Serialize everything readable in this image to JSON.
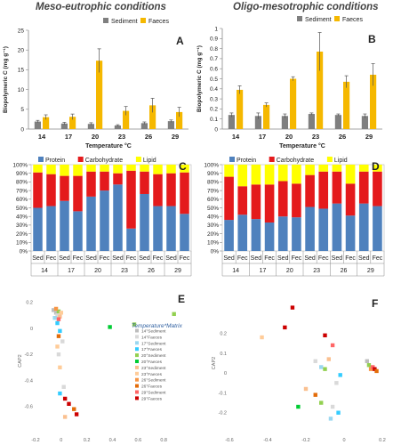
{
  "titles": {
    "left": "Meso-eutrophic conditions",
    "right": "Oligo-mesotrophic conditions"
  },
  "chart_data": [
    {
      "panel": "A",
      "type": "bar",
      "categories": [
        "14",
        "17",
        "20",
        "23",
        "26",
        "29"
      ],
      "series": [
        {
          "name": "Sediment",
          "values": [
            1.9,
            1.4,
            1.3,
            0.9,
            1.5,
            2.0
          ],
          "err": [
            0.3,
            0.3,
            0.3,
            0.2,
            0.3,
            0.3
          ]
        },
        {
          "name": "Faeces",
          "values": [
            3.0,
            3.1,
            17.3,
            4.6,
            6.0,
            4.3
          ],
          "err": [
            0.6,
            0.7,
            3.0,
            1.1,
            1.8,
            1.2
          ]
        }
      ],
      "ylabel": "Biopolymeric C (mg g⁻¹)",
      "xlabel": "Temperature °C",
      "ylim": [
        0,
        25
      ],
      "yticks": [
        0,
        5,
        10,
        15,
        20,
        25
      ],
      "legend": "top-right"
    },
    {
      "panel": "B",
      "type": "bar",
      "categories": [
        "14",
        "17",
        "20",
        "23",
        "26",
        "29"
      ],
      "series": [
        {
          "name": "Sediment",
          "values": [
            0.14,
            0.13,
            0.13,
            0.15,
            0.14,
            0.13
          ],
          "err": [
            0.02,
            0.03,
            0.02,
            0.01,
            0.01,
            0.02
          ]
        },
        {
          "name": "Faeces",
          "values": [
            0.39,
            0.24,
            0.5,
            0.77,
            0.47,
            0.54
          ],
          "err": [
            0.04,
            0.02,
            0.02,
            0.19,
            0.06,
            0.11
          ]
        }
      ],
      "ylabel": "Biopolymeric C (mg g⁻¹)",
      "xlabel": "Temperature °C",
      "ylim": [
        0,
        1.0
      ],
      "yticks": [
        0,
        0.1,
        0.2,
        0.3,
        0.4,
        0.5,
        0.6,
        0.7,
        0.8,
        0.9,
        1
      ],
      "legend": "top-right"
    },
    {
      "panel": "C",
      "type": "bar",
      "stacked": true,
      "categories": [
        "Sed",
        "Fec",
        "Sed",
        "Fec",
        "Sed",
        "Fec",
        "Sed",
        "Fec",
        "Sed",
        "Fec",
        "Sed",
        "Fec"
      ],
      "groups": [
        "14",
        "17",
        "20",
        "23",
        "26",
        "29"
      ],
      "series": [
        {
          "name": "Protein",
          "values": [
            50,
            52,
            58,
            46,
            63,
            70,
            77,
            26,
            66,
            52,
            52,
            43
          ]
        },
        {
          "name": "Carbohydrate",
          "values": [
            41,
            37,
            29,
            41,
            29,
            22,
            13,
            67,
            26,
            37,
            38,
            48
          ]
        },
        {
          "name": "Lipid",
          "values": [
            9,
            11,
            13,
            13,
            8,
            8,
            10,
            7,
            8,
            11,
            10,
            9
          ]
        }
      ],
      "ylim": [
        0,
        100
      ],
      "yticks": [
        "0%",
        "10%",
        "20%",
        "30%",
        "40%",
        "50%",
        "60%",
        "70%",
        "80%",
        "90%",
        "100%"
      ],
      "legend": "top"
    },
    {
      "panel": "D",
      "type": "bar",
      "stacked": true,
      "categories": [
        "Sed",
        "Fec",
        "Sed",
        "Fec",
        "Sed",
        "Fec",
        "Sed",
        "Fec",
        "Sed",
        "Fec",
        "Sed",
        "Fec"
      ],
      "groups": [
        "14",
        "17",
        "20",
        "23",
        "26",
        "29"
      ],
      "series": [
        {
          "name": "Protein",
          "values": [
            36,
            42,
            37,
            33,
            40,
            39,
            51,
            49,
            55,
            41,
            55,
            52
          ]
        },
        {
          "name": "Carbohydrate",
          "values": [
            50,
            33,
            40,
            44,
            41,
            39,
            37,
            43,
            37,
            37,
            37,
            40
          ]
        },
        {
          "name": "Lipid",
          "values": [
            14,
            25,
            23,
            23,
            19,
            22,
            12,
            8,
            8,
            22,
            8,
            8
          ]
        }
      ],
      "ylim": [
        0,
        100
      ],
      "yticks": [
        "0%",
        "10%",
        "20%",
        "30%",
        "40%",
        "50%",
        "60%",
        "70%",
        "80%",
        "90%",
        "100%"
      ],
      "legend": "top"
    },
    {
      "panel": "E",
      "type": "scatter",
      "xlabel": "CAP1",
      "ylabel": "CAP2",
      "xlim": [
        -0.2,
        1.0
      ],
      "ylim": [
        -0.8,
        0.3
      ],
      "xticks": [
        "-0.2",
        "0",
        "0.2",
        "0.4",
        "0.6",
        "0.8"
      ],
      "xtick_values": [
        -0.2,
        0,
        0.2,
        0.4,
        0.6,
        0.8
      ],
      "yticks": [
        "0.2",
        "0",
        "-0.2",
        "-0.4",
        "-0.6"
      ],
      "ytick_values": [
        0.2,
        0,
        -0.2,
        -0.4,
        -0.6
      ],
      "legend_title": "Temperature*Matrix",
      "legend": [
        {
          "label": "14°Sediment",
          "color": "#bdbdbd"
        },
        {
          "label": "14°Faeces",
          "color": "#d9d9d9"
        },
        {
          "label": "17°Sediment",
          "color": "#9ad7f0"
        },
        {
          "label": "17°Faeces",
          "color": "#33ccff"
        },
        {
          "label": "20°Sediment",
          "color": "#92d050"
        },
        {
          "label": "20°Faeces",
          "color": "#00cc33"
        },
        {
          "label": "23°Sediment",
          "color": "#fac090"
        },
        {
          "label": "23°Faeces",
          "color": "#ffcc99"
        },
        {
          "label": "26°Sediment",
          "color": "#f79646"
        },
        {
          "label": "26°Faeces",
          "color": "#e36c09"
        },
        {
          "label": "29°Sediment",
          "color": "#ff6666"
        },
        {
          "label": "29°Faeces",
          "color": "#cc0000"
        }
      ],
      "points": [
        {
          "x": -0.06,
          "y": 0.14,
          "c": 0
        },
        {
          "x": -0.04,
          "y": 0.12,
          "c": 0
        },
        {
          "x": -0.03,
          "y": 0.1,
          "c": 1
        },
        {
          "x": -0.05,
          "y": 0.08,
          "c": 2
        },
        {
          "x": -0.02,
          "y": 0.13,
          "c": 4
        },
        {
          "x": -0.01,
          "y": 0.09,
          "c": 6
        },
        {
          "x": -0.04,
          "y": 0.15,
          "c": 8
        },
        {
          "x": -0.02,
          "y": 0.07,
          "c": 10
        },
        {
          "x": 0.0,
          "y": 0.12,
          "c": 7
        },
        {
          "x": -0.03,
          "y": 0.04,
          "c": 3
        },
        {
          "x": -0.01,
          "y": -0.02,
          "c": 3
        },
        {
          "x": -0.02,
          "y": -0.06,
          "c": 9
        },
        {
          "x": 0.01,
          "y": -0.1,
          "c": 1
        },
        {
          "x": -0.03,
          "y": -0.14,
          "c": 7
        },
        {
          "x": -0.02,
          "y": -0.2,
          "c": 1
        },
        {
          "x": -0.01,
          "y": -0.3,
          "c": 7
        },
        {
          "x": 0.02,
          "y": -0.45,
          "c": 1
        },
        {
          "x": -0.01,
          "y": -0.5,
          "c": 3
        },
        {
          "x": 0.03,
          "y": -0.54,
          "c": 11
        },
        {
          "x": 0.06,
          "y": -0.58,
          "c": 11
        },
        {
          "x": 0.1,
          "y": -0.62,
          "c": 9
        },
        {
          "x": 0.03,
          "y": -0.68,
          "c": 6
        },
        {
          "x": 0.12,
          "y": -0.66,
          "c": 11
        },
        {
          "x": 0.38,
          "y": 0.01,
          "c": 5
        },
        {
          "x": 0.57,
          "y": 0.03,
          "c": 4
        },
        {
          "x": 0.88,
          "y": 0.11,
          "c": 4
        }
      ]
    },
    {
      "panel": "F",
      "type": "scatter",
      "xlabel": "CAP1",
      "ylabel": "CAP2",
      "xlim": [
        -0.6,
        0.2
      ],
      "ylim": [
        -0.3,
        0.4
      ],
      "xticks": [
        "-0.6",
        "-0.4",
        "-0.2",
        "0",
        "0.2"
      ],
      "xtick_values": [
        -0.6,
        -0.4,
        -0.2,
        0,
        0.2
      ],
      "yticks": [
        "0.2",
        "0.1",
        "0",
        "-0.1",
        "-0.2"
      ],
      "ytick_values": [
        0.2,
        0.1,
        0,
        -0.1,
        -0.2
      ],
      "colors": [
        "#bdbdbd",
        "#d9d9d9",
        "#9ad7f0",
        "#33ccff",
        "#92d050",
        "#00cc33",
        "#fac090",
        "#ffcc99",
        "#f79646",
        "#e36c09",
        "#ff6666",
        "#cc0000"
      ],
      "points": [
        {
          "x": -0.27,
          "y": 0.33,
          "c": 11
        },
        {
          "x": -0.31,
          "y": 0.23,
          "c": 11
        },
        {
          "x": -0.43,
          "y": 0.18,
          "c": 7
        },
        {
          "x": -0.1,
          "y": 0.19,
          "c": 11
        },
        {
          "x": -0.06,
          "y": 0.14,
          "c": 10
        },
        {
          "x": -0.15,
          "y": 0.06,
          "c": 1
        },
        {
          "x": -0.08,
          "y": 0.07,
          "c": 6
        },
        {
          "x": -0.12,
          "y": 0.03,
          "c": 2
        },
        {
          "x": -0.1,
          "y": 0.02,
          "c": 4
        },
        {
          "x": 0.12,
          "y": 0.06,
          "c": 0
        },
        {
          "x": 0.13,
          "y": 0.04,
          "c": 4
        },
        {
          "x": 0.14,
          "y": 0.02,
          "c": 8
        },
        {
          "x": 0.15,
          "y": 0.03,
          "c": 10
        },
        {
          "x": 0.16,
          "y": 0.02,
          "c": 11
        },
        {
          "x": 0.17,
          "y": 0.01,
          "c": 9
        },
        {
          "x": -0.02,
          "y": -0.01,
          "c": 3
        },
        {
          "x": -0.04,
          "y": -0.05,
          "c": 1
        },
        {
          "x": -0.2,
          "y": -0.08,
          "c": 6
        },
        {
          "x": -0.15,
          "y": -0.11,
          "c": 9
        },
        {
          "x": -0.12,
          "y": -0.15,
          "c": 4
        },
        {
          "x": -0.06,
          "y": -0.17,
          "c": 1
        },
        {
          "x": -0.24,
          "y": -0.17,
          "c": 5
        },
        {
          "x": -0.03,
          "y": -0.2,
          "c": 3
        },
        {
          "x": -0.07,
          "y": -0.23,
          "c": 2
        }
      ]
    }
  ]
}
